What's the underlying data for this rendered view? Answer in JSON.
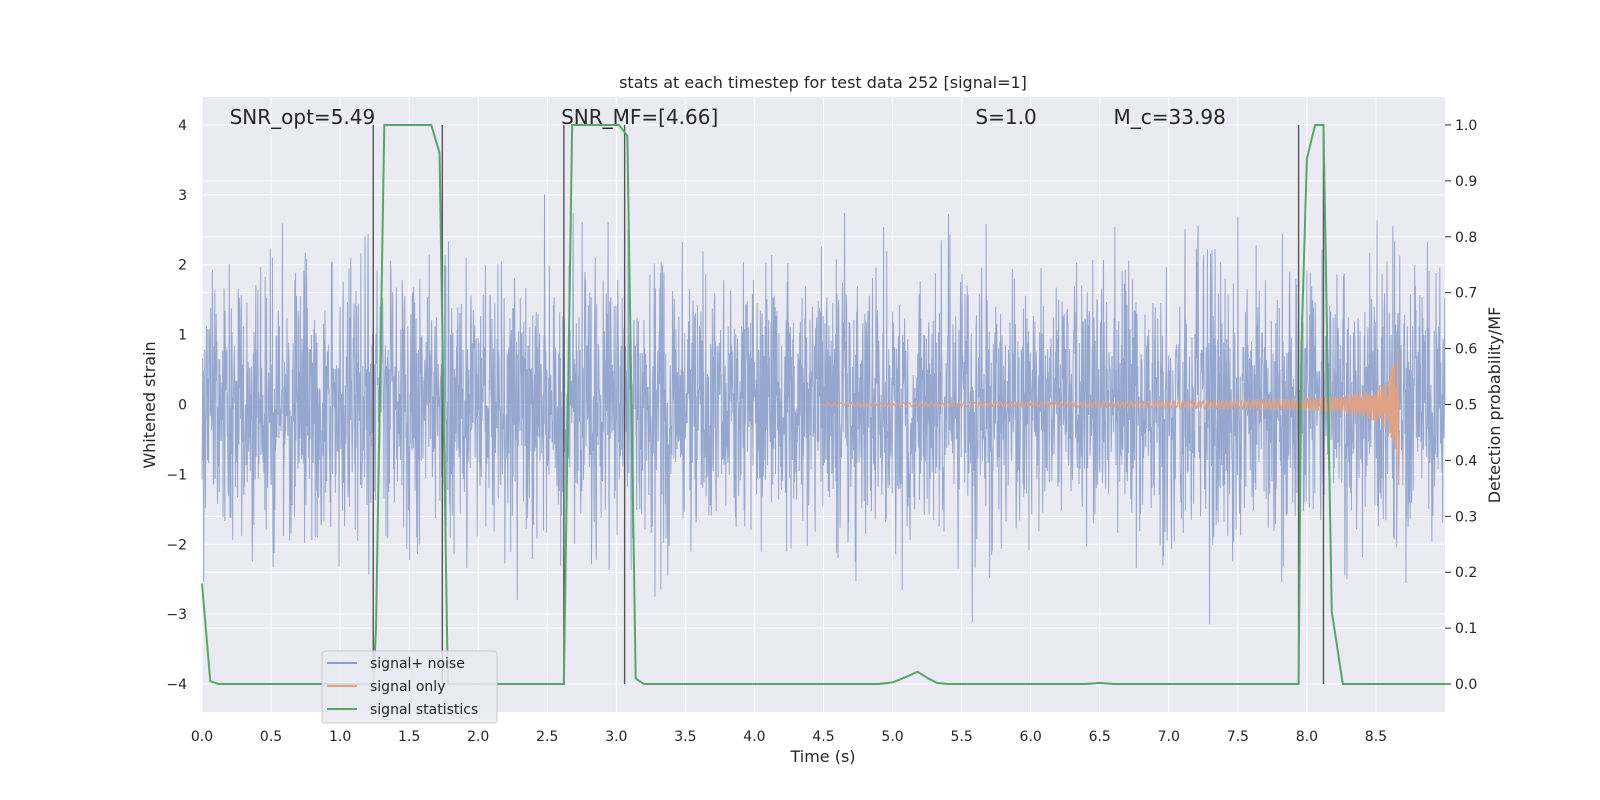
{
  "chart_data": {
    "type": "line",
    "title": "stats at each timestep for test data 252 [signal=1]",
    "xlabel": "Time (s)",
    "ylabel": "Whitened strain",
    "ylabel_right": "Detection probability/MF",
    "xlim": [
      0.0,
      9.0
    ],
    "ylim": [
      -4.4,
      4.4
    ],
    "ylim_right": [
      -0.05,
      1.05
    ],
    "grid": true,
    "legend_position": "lower-left",
    "x_ticks": [
      0.0,
      0.5,
      1.0,
      1.5,
      2.0,
      2.5,
      3.0,
      3.5,
      4.0,
      4.5,
      5.0,
      5.5,
      6.0,
      6.5,
      7.0,
      7.5,
      8.0,
      8.5
    ],
    "x_tick_labels": [
      "0.0",
      "0.5",
      "1.0",
      "1.5",
      "2.0",
      "2.5",
      "3.0",
      "3.5",
      "4.0",
      "4.5",
      "5.0",
      "5.5",
      "6.0",
      "6.5",
      "7.0",
      "7.5",
      "8.0",
      "8.5"
    ],
    "y_ticks": [
      -4,
      -3,
      -2,
      -1,
      0,
      1,
      2,
      3,
      4
    ],
    "y_tick_labels": [
      "−4",
      "−3",
      "−2",
      "−1",
      "0",
      "1",
      "2",
      "3",
      "4"
    ],
    "y_ticks_right": [
      0.0,
      0.1,
      0.2,
      0.3,
      0.4,
      0.5,
      0.6,
      0.7,
      0.8,
      0.9,
      1.0
    ],
    "y_tick_labels_right": [
      "0.0",
      "0.1",
      "0.2",
      "0.3",
      "0.4",
      "0.5",
      "0.6",
      "0.7",
      "0.8",
      "0.9",
      "1.0"
    ],
    "annotations": [
      {
        "text": "SNR_opt=5.49",
        "x": 0.2
      },
      {
        "text": "SNR_MF=[4.66]",
        "x": 2.6
      },
      {
        "text": "S=1.0",
        "x": 5.6
      },
      {
        "text": "M_c=33.98",
        "x": 6.6
      }
    ],
    "series": [
      {
        "name": "signal+ noise",
        "color": "#8da0cb",
        "style": "noise",
        "x_range": [
          0.0,
          9.0
        ],
        "envelope": [
          -4.0,
          4.0
        ],
        "typical_amplitude": 1.6
      },
      {
        "name": "signal only",
        "color": "#e1a184",
        "style": "chirp",
        "x_range": [
          4.5,
          8.67
        ],
        "peak_amplitude": 1.35
      },
      {
        "name": "signal statistics",
        "color": "#55a868",
        "axis": "right",
        "x": [
          0.0,
          0.06,
          0.12,
          1.24,
          1.26,
          1.32,
          1.66,
          1.72,
          1.78,
          2.62,
          2.68,
          2.74,
          3.02,
          3.08,
          3.14,
          3.2,
          4.9,
          5.0,
          5.1,
          5.18,
          5.26,
          5.32,
          5.4,
          6.4,
          6.5,
          6.6,
          7.94,
          7.96,
          8.0,
          8.06,
          8.12,
          8.18,
          8.26,
          9.0
        ],
        "y": [
          0.18,
          0.005,
          0.0,
          0.0,
          0.1,
          1.0,
          1.0,
          0.95,
          0.0,
          0.0,
          1.0,
          1.0,
          1.0,
          0.98,
          0.01,
          0.0,
          0.0,
          0.003,
          0.013,
          0.022,
          0.01,
          0.002,
          0.0,
          0.0,
          0.002,
          0.0,
          0.0,
          0.6,
          0.94,
          1.0,
          1.0,
          0.13,
          0.0,
          0.0
        ]
      }
    ],
    "vertical_markers": [
      1.24,
      1.74,
      2.62,
      3.06,
      7.94,
      8.12
    ]
  },
  "colors": {
    "plot_background": "#eaeaf2",
    "grid": "#ffffff",
    "marker": "#555555"
  }
}
